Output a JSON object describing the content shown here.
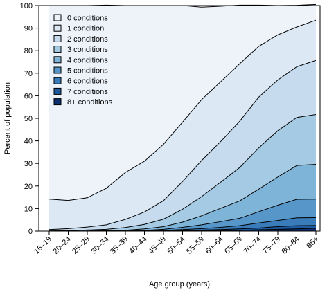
{
  "chart_data": {
    "type": "area",
    "title": "",
    "xlabel": "Age group (years)",
    "ylabel": "Percent of population",
    "ylim": [
      0,
      100
    ],
    "yticks": [
      0,
      10,
      20,
      30,
      40,
      50,
      60,
      70,
      80,
      90,
      100
    ],
    "categories": [
      "16–19",
      "20–24",
      "25–29",
      "30–34",
      "35–39",
      "40–44",
      "45–49",
      "50–54",
      "55–59",
      "60–64",
      "65–69",
      "70–74",
      "75–79",
      "80–84",
      "85+"
    ],
    "stacked": true,
    "series": [
      {
        "name": "0 conditions",
        "color": "#eef3fa",
        "values": [
          85.8,
          86.4,
          85.2,
          81.2,
          74.0,
          69.0,
          61.5,
          51.7,
          41.0,
          33.5,
          26.0,
          18.3,
          13.0,
          9.6,
          7.0
        ]
      },
      {
        "name": "1 condition",
        "color": "#dce8f4",
        "values": [
          13.5,
          12.5,
          13.0,
          16.2,
          20.8,
          22.5,
          25.0,
          26.3,
          27.0,
          26.5,
          25.5,
          22.5,
          20.0,
          17.6,
          17.8
        ]
      },
      {
        "name": "2 conditions",
        "color": "#c6dbee",
        "values": [
          0.6,
          0.9,
          1.3,
          2.0,
          3.6,
          5.5,
          8.2,
          12.3,
          16.0,
          18.0,
          20.5,
          22.5,
          22.5,
          22.5,
          24.0
        ]
      },
      {
        "name": "3 conditions",
        "color": "#a4cbe3",
        "values": [
          0.1,
          0.2,
          0.4,
          0.5,
          1.2,
          2.0,
          3.3,
          5.7,
          8.5,
          11.6,
          14.8,
          18.3,
          20.5,
          21.3,
          22.1
        ]
      },
      {
        "name": "4 conditions",
        "color": "#7fb4d9",
        "values": [
          0.0,
          0.0,
          0.1,
          0.2,
          0.3,
          0.7,
          1.2,
          2.3,
          4.0,
          5.9,
          7.7,
          10.0,
          12.5,
          15.0,
          15.4
        ]
      },
      {
        "name": "5 conditions",
        "color": "#5696c9",
        "values": [
          0.0,
          0.0,
          0.0,
          0.1,
          0.1,
          0.2,
          0.5,
          1.0,
          1.7,
          2.5,
          3.3,
          5.0,
          6.8,
          8.2,
          8.2
        ]
      },
      {
        "name": "6 conditions",
        "color": "#3a7cb9",
        "values": [
          0.0,
          0.0,
          0.0,
          0.0,
          0.0,
          0.1,
          0.2,
          0.4,
          0.6,
          1.0,
          1.4,
          2.2,
          2.7,
          3.5,
          3.5
        ]
      },
      {
        "name": "7 conditions",
        "color": "#1d5aa0",
        "values": [
          0.0,
          0.0,
          0.0,
          0.0,
          0.0,
          0.0,
          0.1,
          0.2,
          0.3,
          0.4,
          0.6,
          0.8,
          1.2,
          1.4,
          1.2
        ]
      },
      {
        "name": "8+ conditions",
        "color": "#0c2f6e",
        "values": [
          0.0,
          0.0,
          0.0,
          0.0,
          0.0,
          0.0,
          0.0,
          0.1,
          0.2,
          0.3,
          0.4,
          0.6,
          0.8,
          1.0,
          1.3
        ]
      }
    ],
    "legend": {
      "position": "top-left",
      "order": [
        "0 conditions",
        "1 condition",
        "2 conditions",
        "3 conditions",
        "4 conditions",
        "5 conditions",
        "6 conditions",
        "7 conditions",
        "8+ conditions"
      ]
    },
    "grid": false
  }
}
